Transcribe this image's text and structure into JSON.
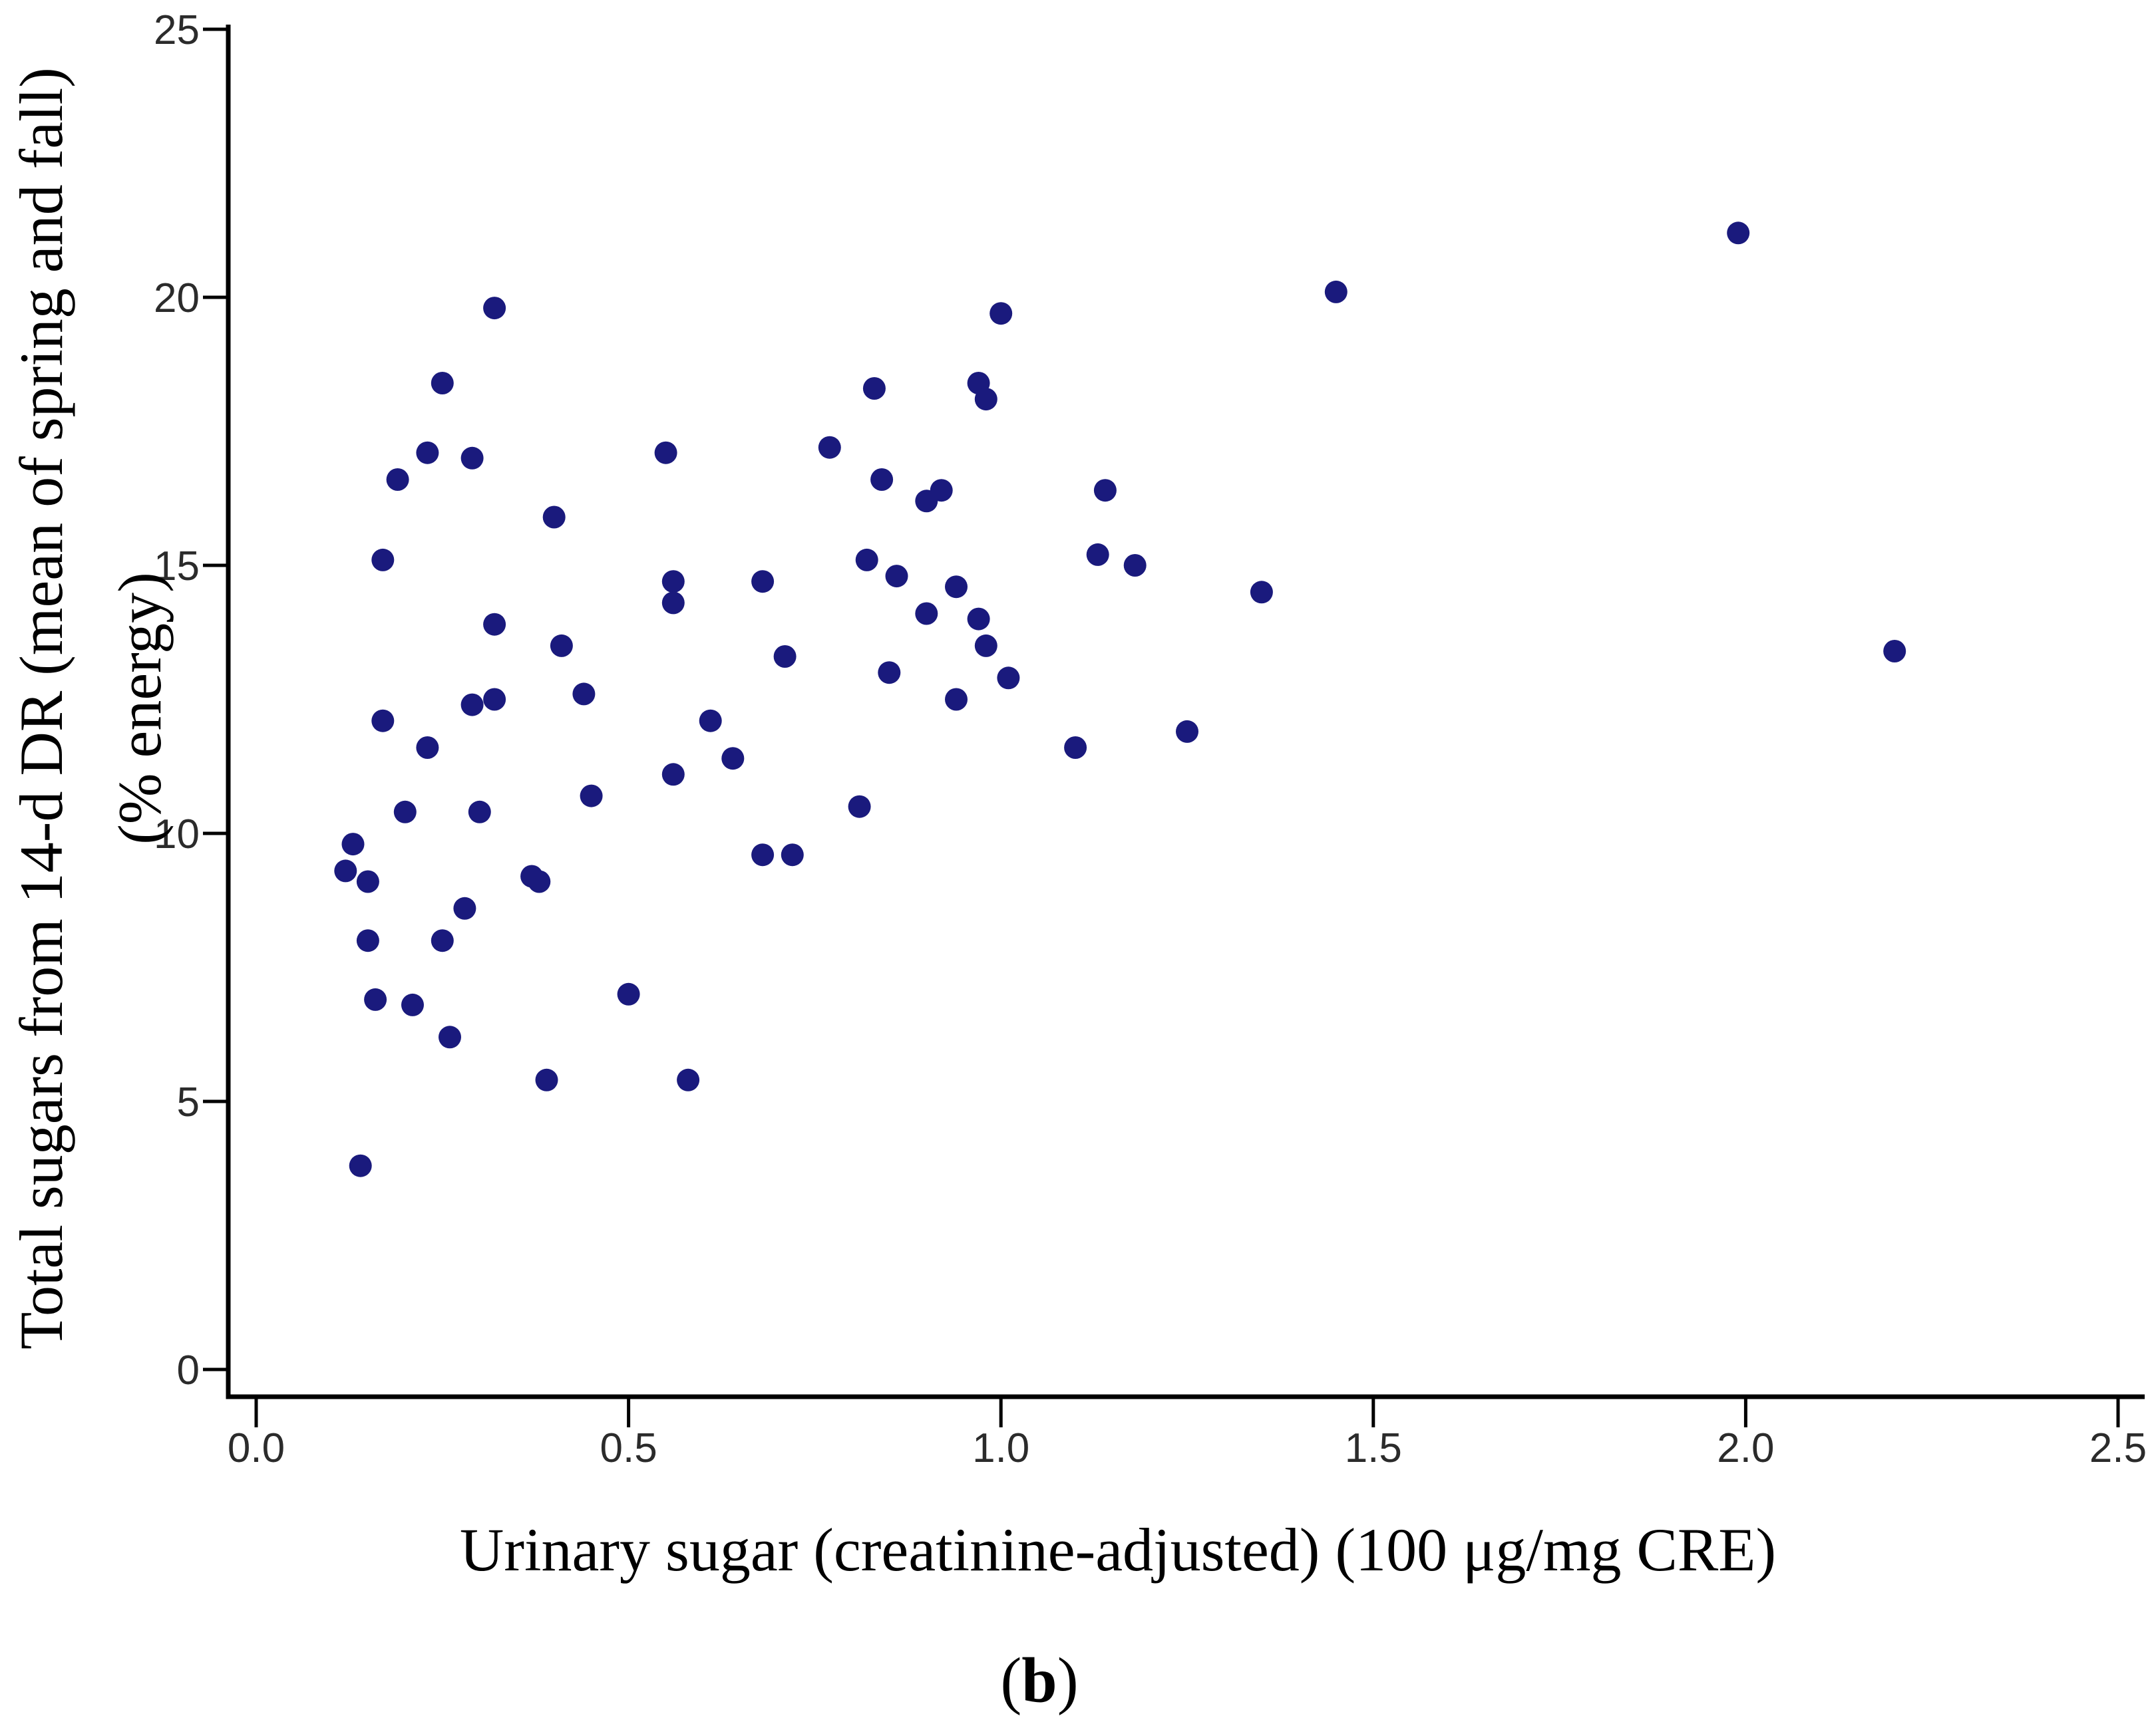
{
  "chart_data": {
    "type": "scatter",
    "title": "",
    "xlabel": "Urinary sugar (creatinine-adjusted) (100 μg/mg CRE)",
    "ylabel_line1": "Total sugars from 14-d DR (mean of spring and fall)",
    "ylabel_line2": "(% energy)",
    "caption_open": "(",
    "caption_letter": "b",
    "caption_close": ")",
    "xlim": [
      0,
      2.54
    ],
    "ylim": [
      0,
      25.1
    ],
    "x_tick_labels": [
      "0.0",
      "0.5",
      "1.0",
      "1.5",
      "2.0",
      "2.5"
    ],
    "x_ticks": [
      0.0,
      0.5,
      1.0,
      1.5,
      2.0,
      2.5
    ],
    "y_tick_labels": [
      "0",
      "5",
      "10",
      "15",
      "20",
      "25"
    ],
    "y_ticks": [
      0,
      5,
      10,
      15,
      20,
      25
    ],
    "grid": false,
    "legend_position": "none",
    "marker_color": "#1a1a7d",
    "axis_color": "#000000",
    "tick_label_color": "#2b2b2b",
    "points": [
      [
        0.32,
        19.8
      ],
      [
        0.25,
        18.4
      ],
      [
        0.23,
        17.1
      ],
      [
        0.29,
        17.0
      ],
      [
        0.19,
        16.6
      ],
      [
        0.55,
        17.1
      ],
      [
        0.4,
        15.9
      ],
      [
        0.17,
        15.1
      ],
      [
        0.56,
        14.7
      ],
      [
        0.56,
        14.3
      ],
      [
        0.68,
        14.7
      ],
      [
        0.32,
        13.9
      ],
      [
        0.41,
        13.5
      ],
      [
        0.44,
        12.6
      ],
      [
        0.71,
        13.3
      ],
      [
        0.29,
        12.4
      ],
      [
        0.32,
        12.5
      ],
      [
        0.17,
        12.1
      ],
      [
        0.23,
        11.6
      ],
      [
        0.45,
        10.7
      ],
      [
        0.56,
        11.1
      ],
      [
        0.61,
        12.1
      ],
      [
        0.64,
        11.4
      ],
      [
        0.2,
        10.4
      ],
      [
        0.3,
        10.4
      ],
      [
        0.13,
        9.8
      ],
      [
        0.12,
        9.3
      ],
      [
        0.15,
        9.1
      ],
      [
        0.37,
        9.2
      ],
      [
        0.38,
        9.1
      ],
      [
        0.28,
        8.6
      ],
      [
        0.15,
        8.0
      ],
      [
        0.25,
        8.0
      ],
      [
        0.68,
        9.6
      ],
      [
        0.72,
        9.6
      ],
      [
        0.5,
        7.0
      ],
      [
        0.16,
        6.9
      ],
      [
        0.21,
        6.8
      ],
      [
        0.26,
        6.2
      ],
      [
        0.39,
        5.4
      ],
      [
        0.58,
        5.4
      ],
      [
        0.14,
        3.8
      ],
      [
        1.0,
        19.7
      ],
      [
        0.83,
        18.3
      ],
      [
        0.97,
        18.4
      ],
      [
        0.98,
        18.1
      ],
      [
        0.77,
        17.2
      ],
      [
        0.84,
        16.6
      ],
      [
        0.9,
        16.2
      ],
      [
        0.92,
        16.4
      ],
      [
        1.14,
        16.4
      ],
      [
        1.13,
        15.2
      ],
      [
        1.18,
        15.0
      ],
      [
        0.82,
        15.1
      ],
      [
        0.86,
        14.8
      ],
      [
        0.94,
        14.6
      ],
      [
        1.35,
        14.5
      ],
      [
        0.9,
        14.1
      ],
      [
        0.97,
        14.0
      ],
      [
        0.98,
        13.5
      ],
      [
        0.85,
        13.0
      ],
      [
        1.01,
        12.9
      ],
      [
        0.94,
        12.5
      ],
      [
        1.99,
        21.2
      ],
      [
        1.45,
        20.1
      ],
      [
        1.1,
        11.6
      ],
      [
        1.25,
        11.9
      ],
      [
        0.81,
        10.5
      ],
      [
        2.2,
        13.4
      ]
    ]
  }
}
